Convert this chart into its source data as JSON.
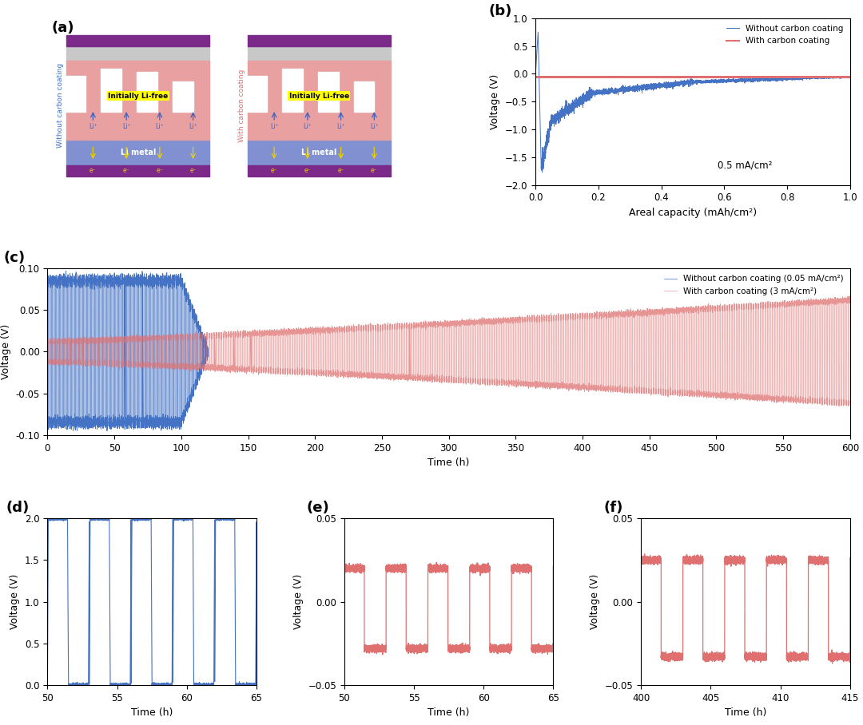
{
  "panel_b": {
    "title": "(b)",
    "xlabel": "Areal capacity (mAh/cm²)",
    "ylabel": "Voltage (V)",
    "ylim": [
      -2.0,
      1.0
    ],
    "xlim": [
      0.0,
      1.0
    ],
    "annotation": "0.5 mA/cm²",
    "blue_color": "#4472C4",
    "red_color": "#E07070",
    "legend1": "Without carbon coating",
    "legend2": "With carbon coating"
  },
  "panel_c": {
    "title": "(c)",
    "xlabel": "Time (h)",
    "ylabel": "Voltage (V)",
    "ylim": [
      -0.1,
      0.1
    ],
    "xlim": [
      0,
      600
    ],
    "blue_color": "#4472C4",
    "red_color": "#E07070",
    "legend1": "Without carbon coating (0.05 mA/cm²)",
    "legend2": "With carbon coating (3 mA/cm²)"
  },
  "panel_d": {
    "title": "(d)",
    "xlabel": "Time (h)",
    "ylabel": "Voltage (V)",
    "ylim": [
      0.0,
      2.0
    ],
    "xlim": [
      50,
      65
    ],
    "blue_color": "#4472C4"
  },
  "panel_e": {
    "title": "(e)",
    "xlabel": "Time (h)",
    "ylabel": "Voltage (V)",
    "ylim": [
      -0.05,
      0.05
    ],
    "xlim": [
      50,
      65
    ],
    "red_color": "#E07070"
  },
  "panel_f": {
    "title": "(f)",
    "xlabel": "Time (h)",
    "ylabel": "Voltage (V)",
    "ylim": [
      -0.05,
      0.05
    ],
    "xlim": [
      400,
      415
    ],
    "red_color": "#E07070"
  },
  "panel_a": {
    "title": "(a)",
    "purple_color": "#7B2A8A",
    "pink_color": "#E8A0A0",
    "blue_li_color": "#8090D0",
    "gray_color": "#C8C8C8",
    "label1": "Without carbon coating",
    "label2": "With carbon coating",
    "label1_color": "#4472C4",
    "label2_color": "#E07070"
  }
}
